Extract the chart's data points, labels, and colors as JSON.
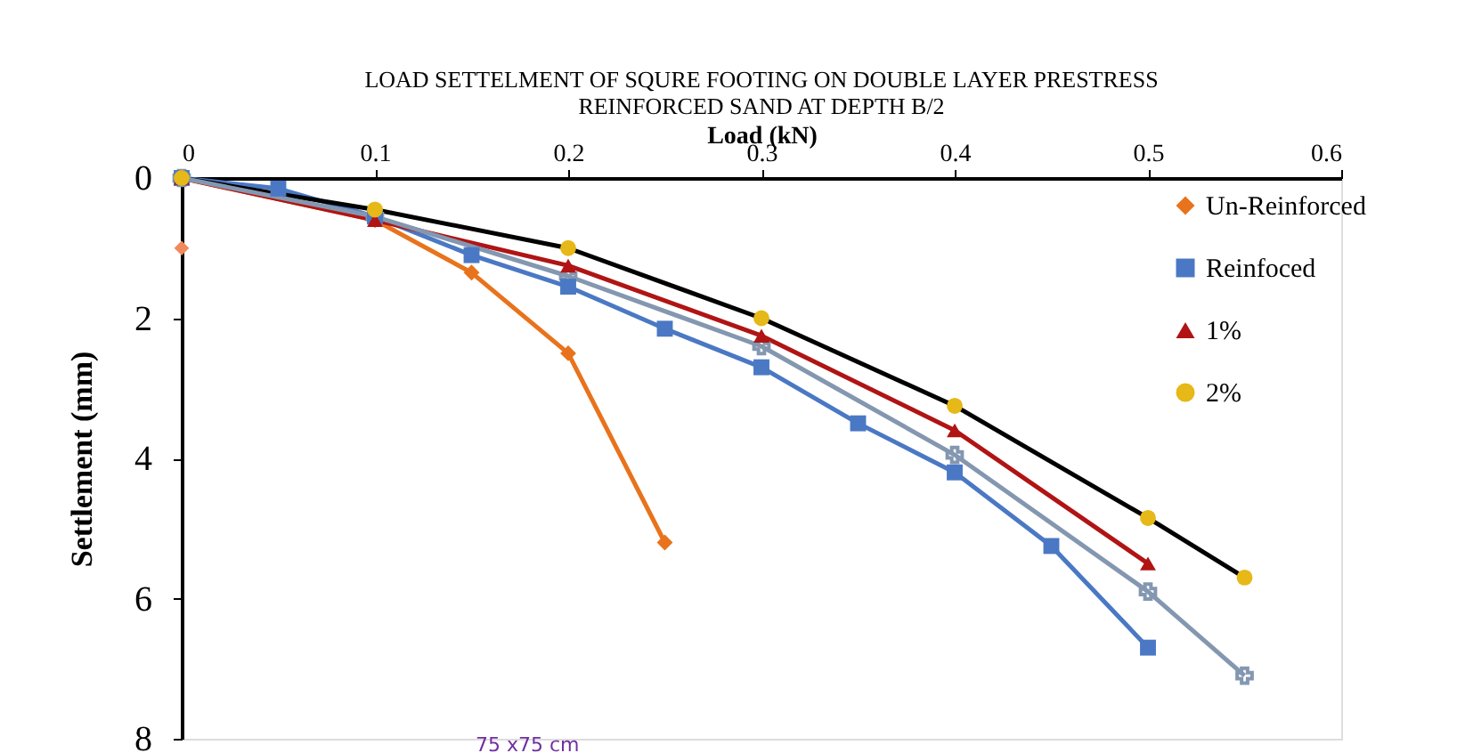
{
  "chart_data": {
    "type": "line",
    "title": "LOAD SETTELMENT OF SQURE FOOTING ON DOUBLE LAYER PRESTRESS REINFORCED SAND AT DEPTH B/2",
    "xlabel": "Load (kN)",
    "ylabel": "Settlement (mm)",
    "xlim": [
      0,
      0.6
    ],
    "xticks": [
      0,
      0.1,
      0.2,
      0.3,
      0.4,
      0.5,
      0.6
    ],
    "ylim": [
      8,
      0
    ],
    "yticks": [
      0,
      2,
      4,
      6,
      8
    ],
    "grid": false,
    "legend": "top right",
    "line_style": "solid",
    "annotations": [
      "75 x75 cm"
    ],
    "series": [
      {
        "name": "Un-Reinforced",
        "color": "#e8731c",
        "marker": "diamond",
        "x": [
          0,
          0.1,
          0.15,
          0.2,
          0.25
        ],
        "values": [
          0,
          0.6,
          1.35,
          2.5,
          5.2
        ]
      },
      {
        "name": "Reinfoced",
        "color": "#4a78c4",
        "marker": "square",
        "x": [
          0,
          0.05,
          0.1,
          0.15,
          0.2,
          0.25,
          0.3,
          0.35,
          0.4,
          0.45,
          0.5
        ],
        "values": [
          0,
          0.15,
          0.55,
          1.1,
          1.55,
          2.15,
          2.7,
          3.5,
          4.2,
          5.25,
          6.7
        ]
      },
      {
        "name": "1%",
        "color": "#b01414",
        "marker": "triangle",
        "x": [
          0,
          0.1,
          0.2,
          0.3,
          0.4,
          0.5
        ],
        "values": [
          0,
          0.6,
          1.25,
          2.25,
          3.6,
          5.5
        ]
      },
      {
        "name": "2%",
        "color": "#000000",
        "colors": [
          "#e6b818",
          "#e6b818",
          "#e6b818",
          "#e6b818",
          "#e6b818",
          "#e6b818",
          "#e6b818"
        ],
        "marker": "circle",
        "x": [
          0,
          0.1,
          0.2,
          0.3,
          0.4,
          0.5,
          0.55
        ],
        "values": [
          0,
          0.45,
          1.0,
          2.0,
          3.25,
          4.85,
          5.7
        ]
      },
      {
        "color": "#8497b0",
        "marker": "cross",
        "x": [
          0,
          0.1,
          0.2,
          0.3,
          0.4,
          0.5,
          0.55
        ],
        "values": [
          0,
          0.55,
          1.4,
          2.4,
          3.95,
          5.9,
          7.1
        ]
      },
      {
        "type": "scatter",
        "color": "#f08a5a",
        "marker": "diamond",
        "x": [
          0
        ],
        "values": [
          1.0
        ]
      }
    ]
  }
}
